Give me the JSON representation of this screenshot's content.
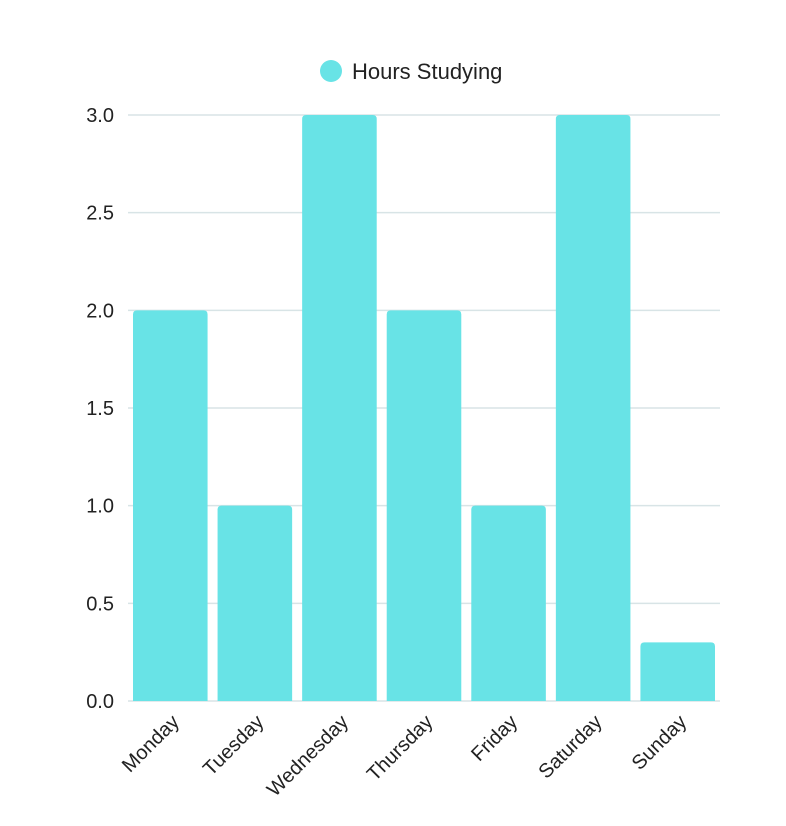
{
  "chart_data": {
    "type": "bar",
    "categories": [
      "Monday",
      "Tuesday",
      "Wednesday",
      "Thursday",
      "Friday",
      "Saturday",
      "Sunday"
    ],
    "series": [
      {
        "name": "Hours Studying",
        "values": [
          2,
          1,
          3,
          2,
          1,
          3,
          0.3
        ],
        "color": "#68e3e6"
      }
    ],
    "yticks": [
      "0.0",
      "0.5",
      "1.0",
      "1.5",
      "2.0",
      "2.5",
      "3.0"
    ],
    "ylim": [
      0,
      3
    ],
    "grid": true,
    "legend_position": "top-center"
  }
}
